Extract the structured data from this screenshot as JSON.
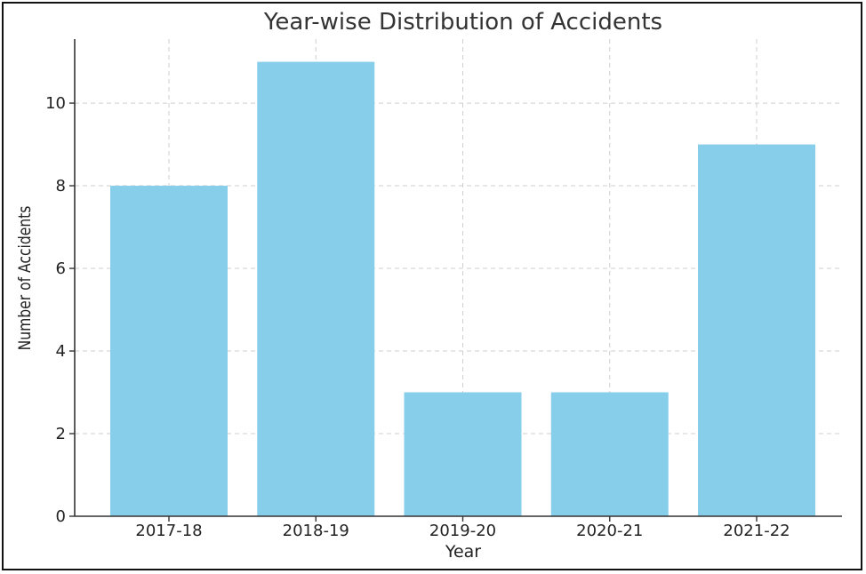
{
  "chart_data": {
    "type": "bar",
    "title": "Year-wise Distribution of Accidents",
    "xlabel": "Year",
    "ylabel": "Number of Accidents",
    "categories": [
      "2017-18",
      "2018-19",
      "2019-20",
      "2020-21",
      "2021-22"
    ],
    "values": [
      8,
      11,
      3,
      3,
      9
    ],
    "ylim": [
      0,
      11.55
    ],
    "yticks": [
      0,
      2,
      4,
      6,
      8,
      10
    ],
    "grid": true,
    "bar_color": "#87CEEB"
  }
}
